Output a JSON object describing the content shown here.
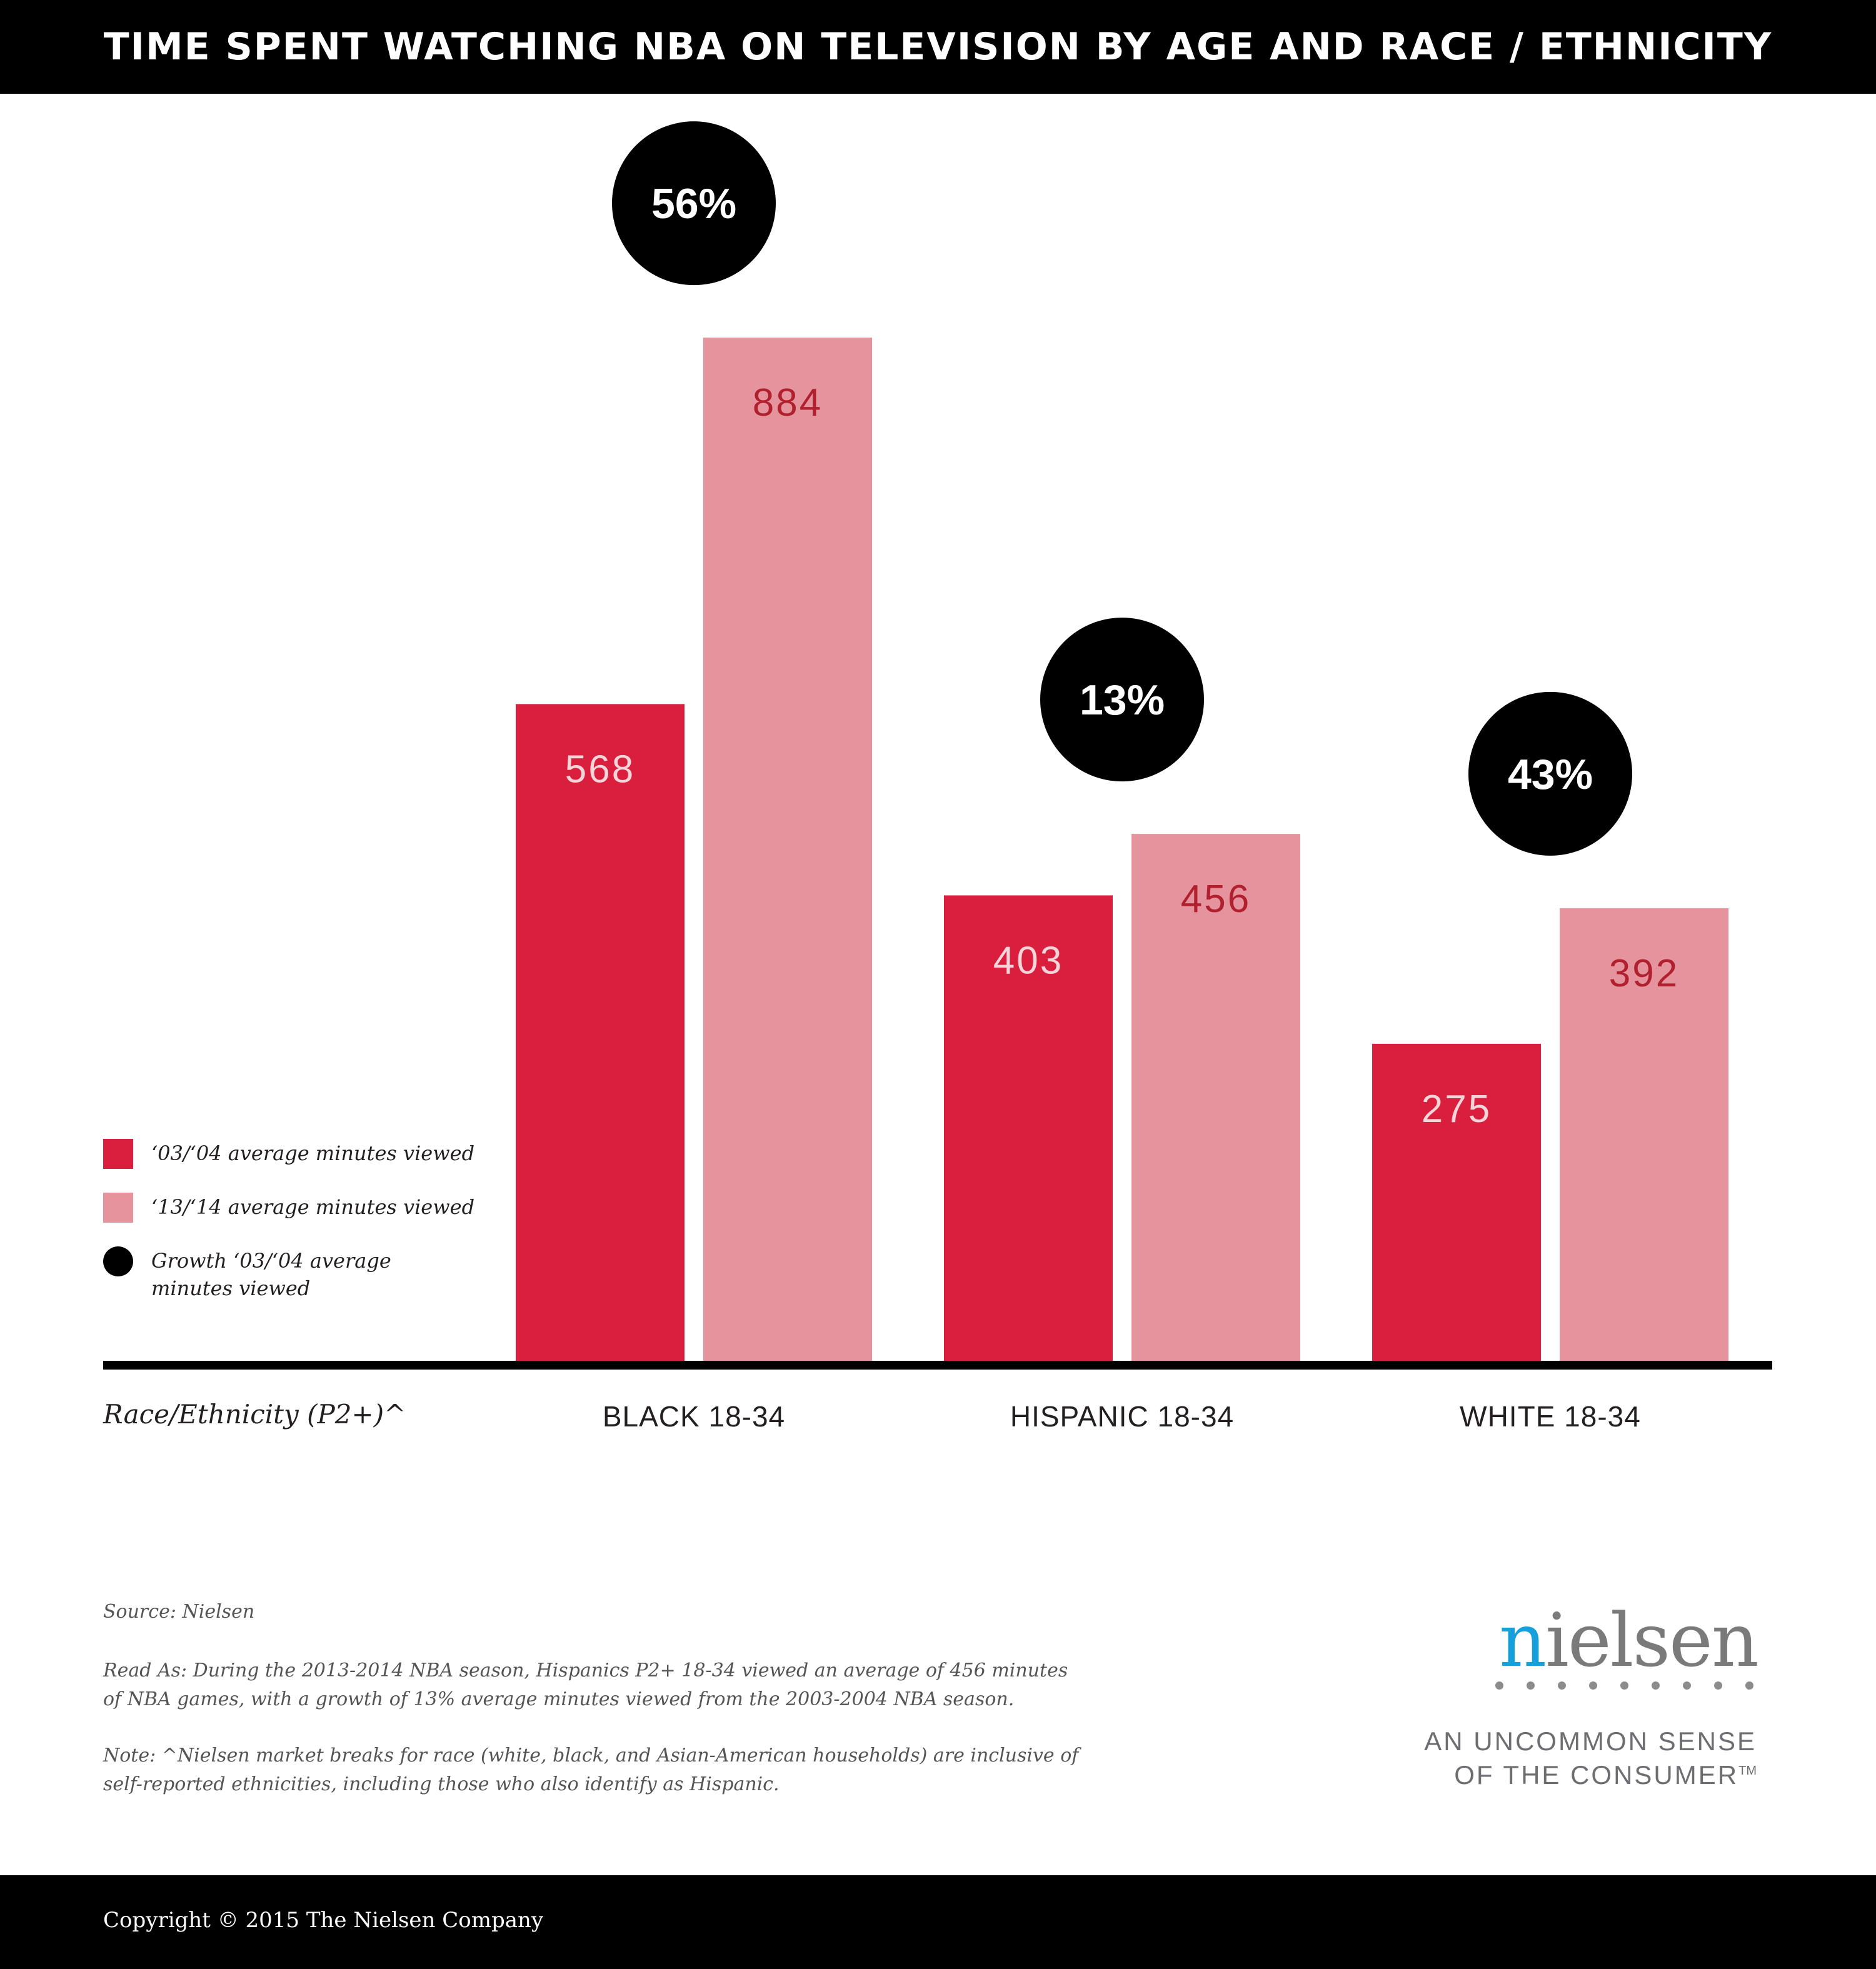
{
  "title": "TIME SPENT WATCHING NBA ON TELEVISION BY AGE AND RACE / ETHNICITY",
  "colors": {
    "series_2003": "#da1e3e",
    "series_2013": "#e5939c",
    "growth": "#000000",
    "label_on_dark": "#f6d4d8",
    "label_on_light": "#b0202f",
    "axis": "#000000"
  },
  "legend": [
    {
      "label": "‘03/‘04 average minutes viewed",
      "shape": "square",
      "color": "#da1e3e"
    },
    {
      "label": "‘13/‘14 average minutes viewed",
      "shape": "square",
      "color": "#e5939c"
    },
    {
      "label": "Growth ‘03/‘04 average minutes viewed",
      "shape": "circle",
      "color": "#000000"
    }
  ],
  "chart_data": {
    "type": "bar",
    "title": "TIME SPENT WATCHING NBA ON TELEVISION BY AGE AND RACE / ETHNICITY",
    "xlabel": "Race/Ethnicity (P2+)^",
    "ylabel": "",
    "ylim": [
      0,
      1000
    ],
    "categories": [
      "BLACK 18-34",
      "HISPANIC 18-34",
      "WHITE 18-34"
    ],
    "series": [
      {
        "name": "‘03/‘04 average minutes viewed",
        "values": [
          568,
          403,
          275
        ]
      },
      {
        "name": "‘13/‘14 average minutes viewed",
        "values": [
          884,
          456,
          392
        ]
      }
    ],
    "growth": {
      "name": "Growth ‘03/‘04 average minutes viewed",
      "values": [
        "56%",
        "13%",
        "43%"
      ]
    },
    "grid": false,
    "legend_position": "bottom-left"
  },
  "notes": {
    "source": "Source: Nielsen",
    "read_as_1": "Read As: During the 2013-2014 NBA season, Hispanics P2+ 18-34 viewed an average of 456 minutes",
    "read_as_2": "of NBA games, with a growth of 13% average minutes viewed from the 2003-2004 NBA season.",
    "note_1": "Note: ^Nielsen market breaks for race (white, black, and Asian-American households) are inclusive of",
    "note_2": "self-reported ethnicities, including those who also identify as Hispanic."
  },
  "logo": {
    "first_letter": "n",
    "rest": "ielsen",
    "tagline_1": "AN UNCOMMON SENSE",
    "tagline_2": "OF THE CONSUMER",
    "tm": "TM"
  },
  "footer": {
    "copyright": "Copyright © 2015 The Nielsen Company"
  }
}
